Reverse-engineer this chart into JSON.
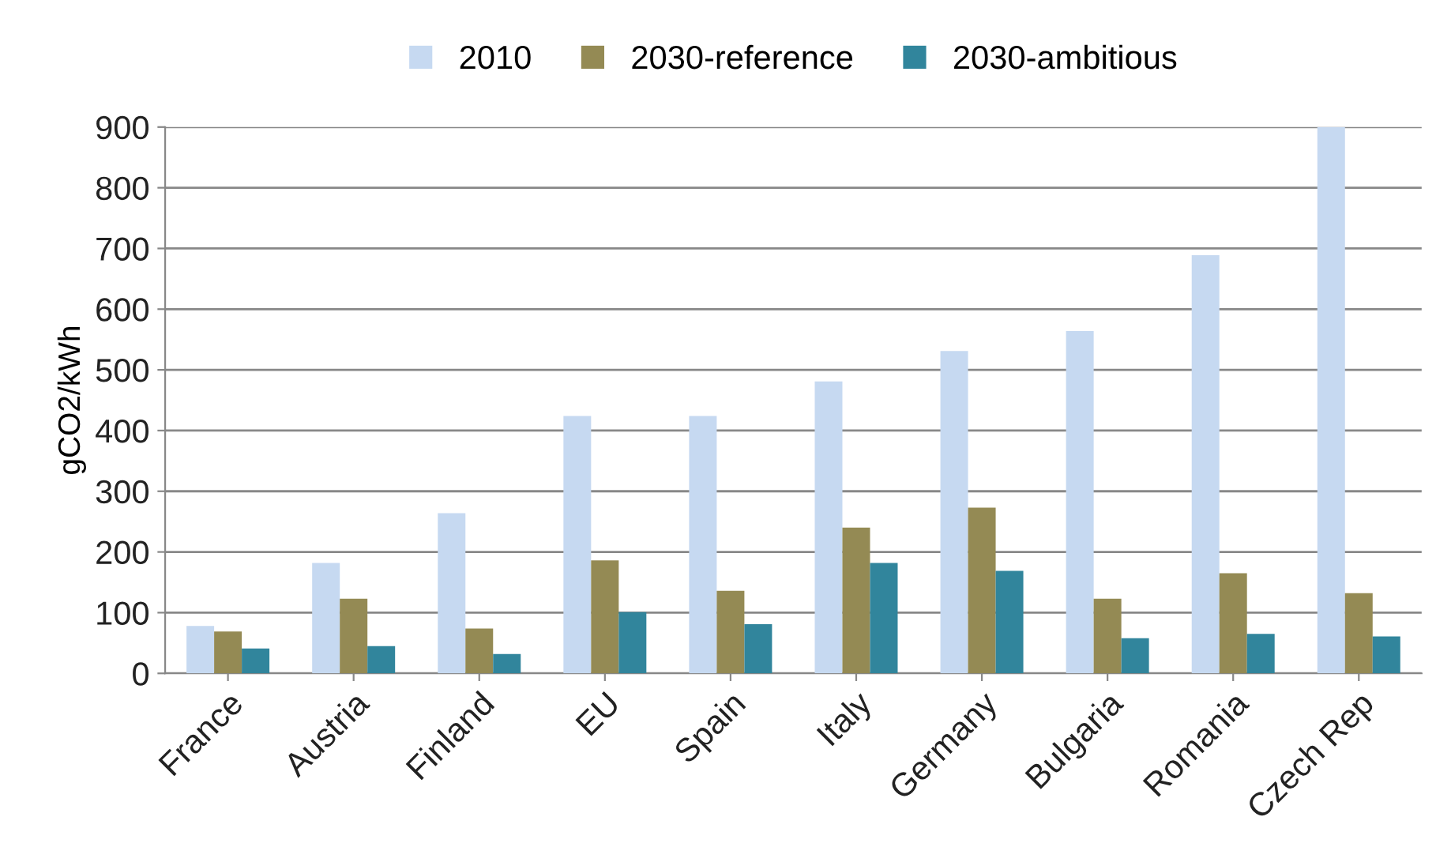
{
  "chart_data": {
    "type": "bar",
    "ylabel": "gCO2/kWh",
    "categories": [
      "France",
      "Austria",
      "Finland",
      "EU",
      "Spain",
      "Italy",
      "Germany",
      "Bulgaria",
      "Romania",
      "Czech Rep"
    ],
    "series": [
      {
        "name": "2010",
        "color": "#c6d9f1",
        "values": [
          78,
          182,
          264,
          424,
          424,
          481,
          531,
          564,
          689,
          900
        ]
      },
      {
        "name": "2030-reference",
        "color": "#948a54",
        "values": [
          69,
          123,
          74,
          186,
          136,
          240,
          273,
          123,
          165,
          132
        ]
      },
      {
        "name": "2030-ambitious",
        "color": "#31859c",
        "values": [
          41,
          45,
          32,
          101,
          81,
          182,
          169,
          58,
          65,
          61
        ]
      }
    ],
    "ylim": [
      0,
      900
    ],
    "yticks": [
      0,
      100,
      200,
      300,
      400,
      500,
      600,
      700,
      800,
      900
    ],
    "grid": "y",
    "legend": "top"
  }
}
